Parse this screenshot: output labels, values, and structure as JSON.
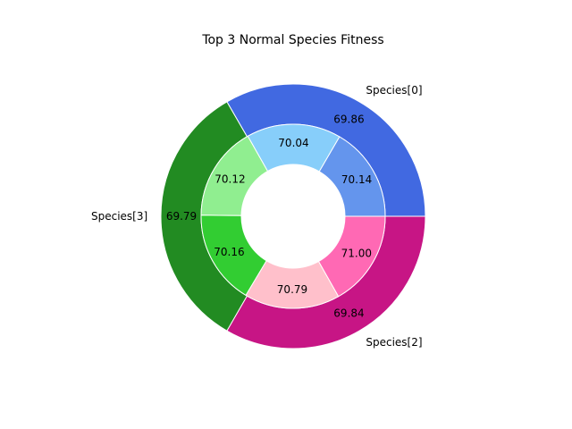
{
  "chart_data": {
    "type": "pie",
    "subtype": "nested-donut",
    "title": "Top 3 Normal Species Fitness",
    "outer_ring": [
      {
        "label": "Species[0]",
        "value": 69.86,
        "color": "#4169E1"
      },
      {
        "label": "Species[3]",
        "value": 69.79,
        "color": "#228B22"
      },
      {
        "label": "Species[2]",
        "value": 69.84,
        "color": "#C71585"
      }
    ],
    "inner_ring": [
      {
        "parent": "Species[0]",
        "value": 70.14,
        "color": "#6495ED"
      },
      {
        "parent": "Species[0]",
        "value": 70.04,
        "color": "#87CEFA"
      },
      {
        "parent": "Species[3]",
        "value": 70.12,
        "color": "#90EE90"
      },
      {
        "parent": "Species[3]",
        "value": 70.16,
        "color": "#32CD32"
      },
      {
        "parent": "Species[2]",
        "value": 70.79,
        "color": "#FFC0CB"
      },
      {
        "parent": "Species[2]",
        "value": 71.0,
        "color": "#FF69B4"
      }
    ],
    "start_angle_deg": 0,
    "direction": "counterclockwise",
    "legend": "none"
  }
}
